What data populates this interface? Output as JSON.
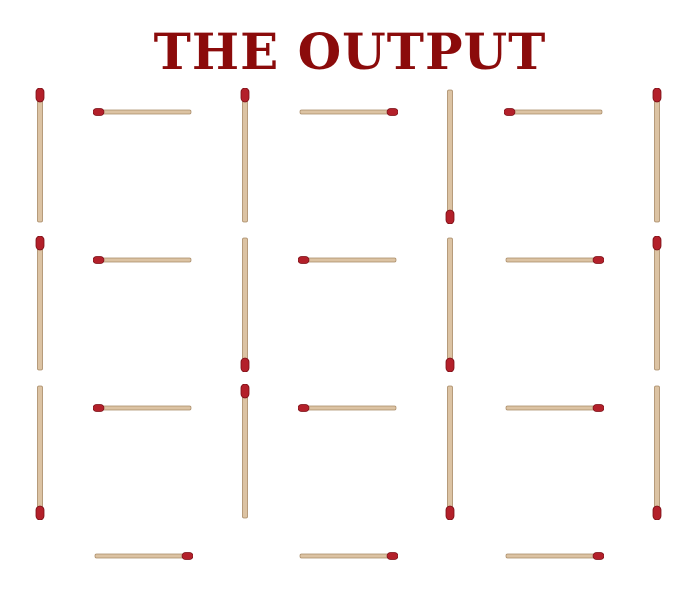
{
  "title": "THE OUTPUT",
  "colors": {
    "title": "#8b0b0b",
    "match_head": "#b3202a",
    "match_head_dark": "#7a0f16",
    "match_stick": "#dcc3a3",
    "match_edge": "#a88a66",
    "cell_bg": "#f6f6f6"
  },
  "puzzle": {
    "grid": {
      "rows": 3,
      "cols": 3
    },
    "horizontal": [
      {
        "row": 0,
        "col": 0,
        "head": "left"
      },
      {
        "row": 0,
        "col": 1,
        "head": "right"
      },
      {
        "row": 0,
        "col": 2,
        "head": "left"
      },
      {
        "row": 1,
        "col": 0,
        "head": "left"
      },
      {
        "row": 1,
        "col": 1,
        "head": "left"
      },
      {
        "row": 1,
        "col": 2,
        "head": "right"
      },
      {
        "row": 2,
        "col": 0,
        "head": "left"
      },
      {
        "row": 2,
        "col": 1,
        "head": "left"
      },
      {
        "row": 2,
        "col": 2,
        "head": "right"
      },
      {
        "row": 3,
        "col": 0,
        "head": "right"
      },
      {
        "row": 3,
        "col": 1,
        "head": "right"
      },
      {
        "row": 3,
        "col": 2,
        "head": "right"
      }
    ],
    "vertical": [
      {
        "row": 0,
        "col": 0,
        "head": "top"
      },
      {
        "row": 0,
        "col": 1,
        "head": "top"
      },
      {
        "row": 0,
        "col": 2,
        "head": "bottom"
      },
      {
        "row": 0,
        "col": 3,
        "head": "top"
      },
      {
        "row": 1,
        "col": 0,
        "head": "top"
      },
      {
        "row": 1,
        "col": 1,
        "head": "bottom"
      },
      {
        "row": 1,
        "col": 2,
        "head": "bottom"
      },
      {
        "row": 1,
        "col": 3,
        "head": "top"
      },
      {
        "row": 2,
        "col": 0,
        "head": "bottom"
      },
      {
        "row": 2,
        "col": 1,
        "head": "top"
      },
      {
        "row": 2,
        "col": 2,
        "head": "bottom"
      },
      {
        "row": 2,
        "col": 3,
        "head": "bottom"
      }
    ]
  }
}
